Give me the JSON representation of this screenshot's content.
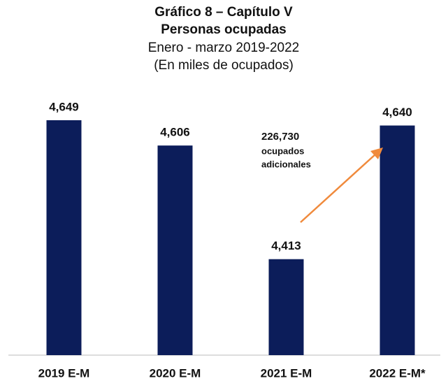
{
  "chart_data": {
    "type": "bar",
    "title": [
      "Gráfico 8 – Capítulo V",
      "Personas ocupadas"
    ],
    "subtitle": [
      "Enero - marzo 2019-2022",
      "(En miles de ocupados)"
    ],
    "categories": [
      "2019 E-M",
      "2020 E-M",
      "2021 E-M",
      "2022 E-M*"
    ],
    "values": [
      4649,
      4606,
      4413,
      4640
    ],
    "value_labels": [
      "4,649",
      "4,606",
      "4,413",
      "4,640"
    ],
    "color": "#0c1d5a",
    "ylim": [
      4250,
      4700
    ],
    "annotation": [
      "226,730",
      "ocupados",
      "adicionales"
    ],
    "annotation_color": "#f08a3c"
  }
}
